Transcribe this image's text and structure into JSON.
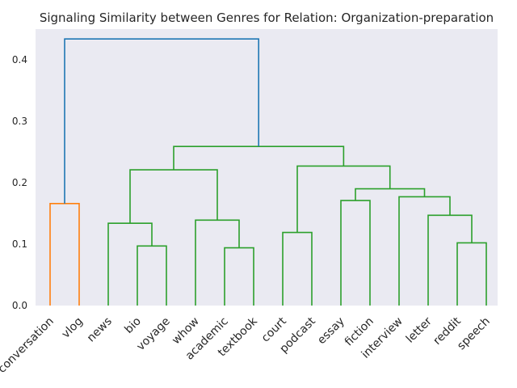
{
  "chart_data": {
    "type": "dendrogram",
    "title": "Signaling Similarity between Genres for Relation: Organization-preparation",
    "xlabel": "",
    "ylabel": "",
    "ylim": [
      0,
      0.45
    ],
    "yticks": [
      0.0,
      0.1,
      0.2,
      0.3,
      0.4
    ],
    "ytick_labels": [
      "0.0",
      "0.1",
      "0.2",
      "0.3",
      "0.4"
    ],
    "leaves": [
      "conversation",
      "vlog",
      "news",
      "bio",
      "voyage",
      "whow",
      "academic",
      "textbook",
      "court",
      "podcast",
      "essay",
      "fiction",
      "interview",
      "letter",
      "reddit",
      "speech"
    ],
    "colors": {
      "orange": "#ff7f0e",
      "green": "#2ca02c",
      "blue": "#1f77b4",
      "background": "#eaeaf2"
    },
    "merges": [
      {
        "left": "leaf:0",
        "right": "leaf:1",
        "height": 0.166,
        "color": "orange"
      },
      {
        "left": "leaf:3",
        "right": "leaf:4",
        "height": 0.097,
        "color": "green"
      },
      {
        "left": "leaf:2",
        "right": "node:1",
        "height": 0.134,
        "color": "green"
      },
      {
        "left": "leaf:6",
        "right": "leaf:7",
        "height": 0.094,
        "color": "green"
      },
      {
        "left": "leaf:5",
        "right": "node:3",
        "height": 0.139,
        "color": "green"
      },
      {
        "left": "node:2",
        "right": "node:4",
        "height": 0.221,
        "color": "green"
      },
      {
        "left": "leaf:8",
        "right": "leaf:9",
        "height": 0.119,
        "color": "green"
      },
      {
        "left": "leaf:10",
        "right": "leaf:11",
        "height": 0.171,
        "color": "green"
      },
      {
        "left": "leaf:14",
        "right": "leaf:15",
        "height": 0.102,
        "color": "green"
      },
      {
        "left": "leaf:13",
        "right": "node:8",
        "height": 0.147,
        "color": "green"
      },
      {
        "left": "leaf:12",
        "right": "node:9",
        "height": 0.177,
        "color": "green"
      },
      {
        "left": "node:7",
        "right": "node:10",
        "height": 0.19,
        "color": "green"
      },
      {
        "left": "node:6",
        "right": "node:11",
        "height": 0.227,
        "color": "green"
      },
      {
        "left": "node:5",
        "right": "node:12",
        "height": 0.259,
        "color": "green"
      },
      {
        "left": "node:0",
        "right": "node:13",
        "height": 0.434,
        "color": "blue"
      }
    ]
  }
}
